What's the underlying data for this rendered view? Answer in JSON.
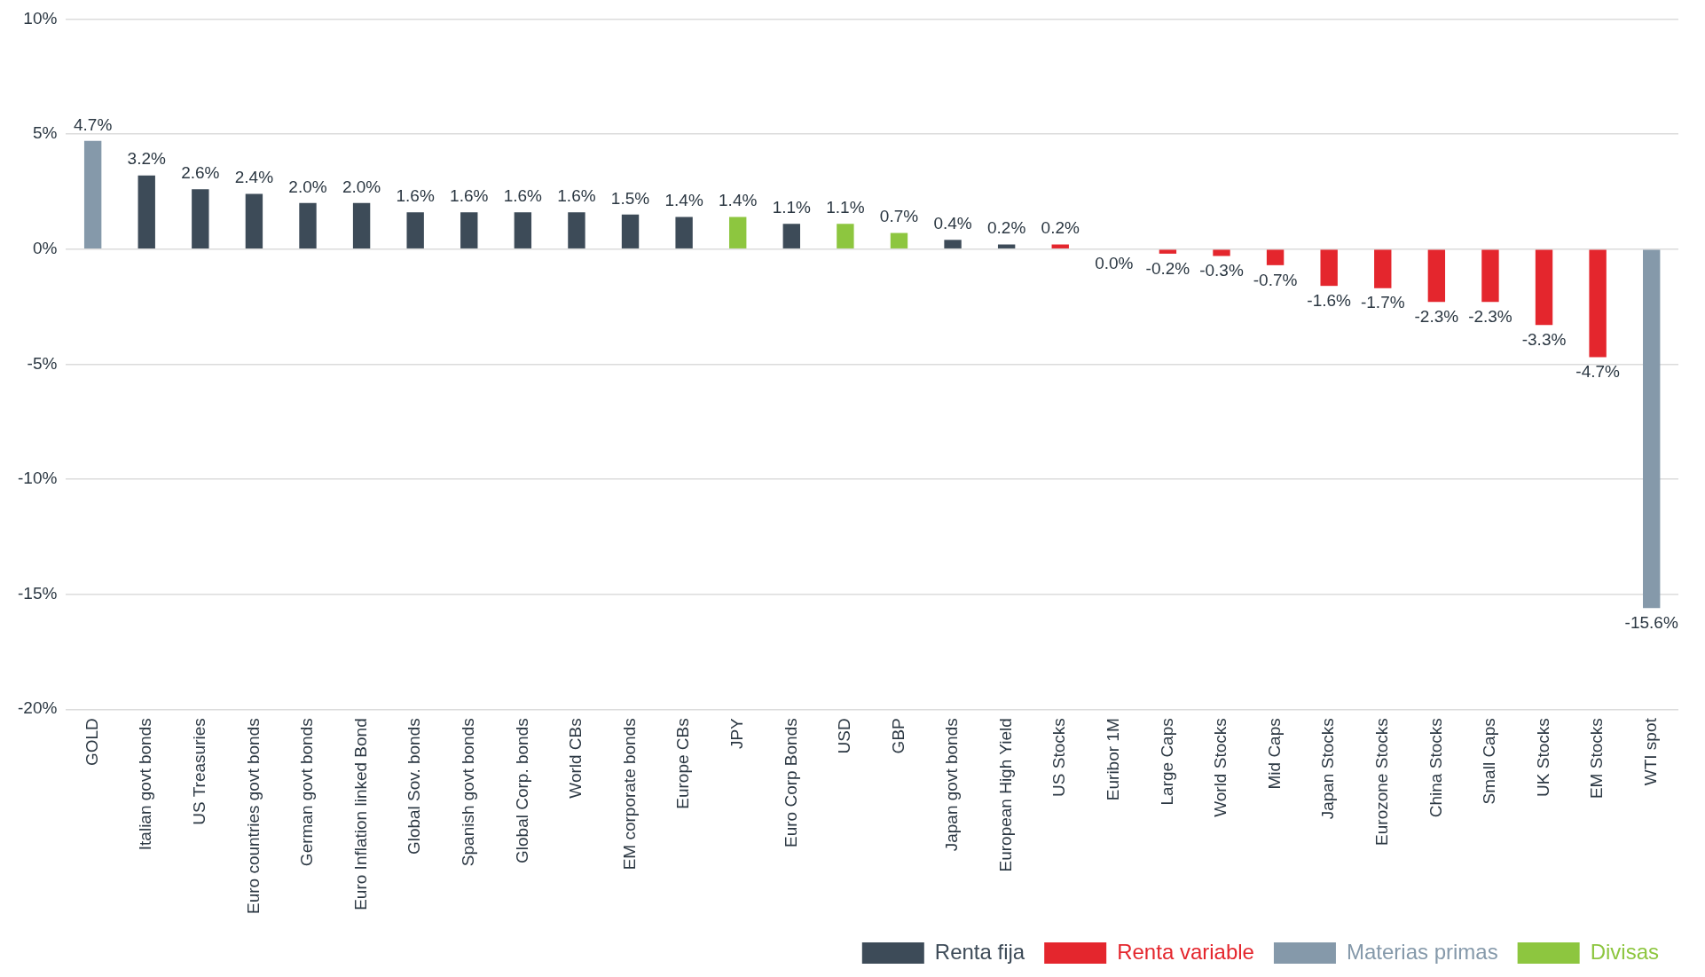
{
  "chart_data": {
    "type": "bar",
    "categories": [
      "GOLD",
      "Italian govt bonds",
      "US Treasuries",
      "Euro countries govt bonds",
      "German govt bonds",
      "Euro Inflation linked Bond",
      "Global Sov. bonds",
      "Spanish govt bonds",
      "Global Corp. bonds",
      "World CBs",
      "EM corporate bonds",
      "Europe CBs",
      "JPY",
      "Euro Corp Bonds",
      "USD",
      "GBP",
      "Japan govt bonds",
      "European High Yield",
      "US Stocks",
      "Euribor 1M",
      "Large Caps",
      "World Stocks",
      "Mid Caps",
      "Japan Stocks",
      "Eurozone Stocks",
      "China Stocks",
      "Small Caps",
      "UK Stocks",
      "EM Stocks",
      "WTI spot"
    ],
    "series": [
      {
        "name": "Renta fija",
        "color": "#3d4b58",
        "values": [
          null,
          3.2,
          2.6,
          2.4,
          2.0,
          2.0,
          1.6,
          1.6,
          1.6,
          1.6,
          1.5,
          1.4,
          null,
          1.1,
          null,
          null,
          0.4,
          0.2,
          null,
          0.0,
          null,
          null,
          null,
          null,
          null,
          null,
          null,
          null,
          null,
          null
        ],
        "value_labels": [
          null,
          "3.2%",
          "2.6%",
          "2.4%",
          "2.0%",
          "2.0%",
          "1.6%",
          "1.6%",
          "1.6%",
          "1.6%",
          "1.5%",
          "1.4%",
          null,
          "1.1%",
          null,
          null,
          "0.4%",
          "0.2%",
          null,
          "0.0%",
          null,
          null,
          null,
          null,
          null,
          null,
          null,
          null,
          null,
          null
        ]
      },
      {
        "name": "Renta variable",
        "color": "#e4262d",
        "values": [
          null,
          null,
          null,
          null,
          null,
          null,
          null,
          null,
          null,
          null,
          null,
          null,
          null,
          null,
          null,
          null,
          null,
          null,
          0.2,
          null,
          -0.2,
          -0.3,
          -0.7,
          -1.6,
          -1.7,
          -2.3,
          -2.3,
          -3.3,
          -4.7,
          null
        ],
        "value_labels": [
          null,
          null,
          null,
          null,
          null,
          null,
          null,
          null,
          null,
          null,
          null,
          null,
          null,
          null,
          null,
          null,
          null,
          null,
          "0.2%",
          null,
          "-0.2%",
          "-0.3%",
          "-0.7%",
          "-1.6%",
          "-1.7%",
          "-2.3%",
          "-2.3%",
          "-3.3%",
          "-4.7%",
          null
        ]
      },
      {
        "name": "Materias primas",
        "color": "#8599aa",
        "values": [
          4.7,
          null,
          null,
          null,
          null,
          null,
          null,
          null,
          null,
          null,
          null,
          null,
          null,
          null,
          null,
          null,
          null,
          null,
          null,
          null,
          null,
          null,
          null,
          null,
          null,
          null,
          null,
          null,
          null,
          -15.6
        ],
        "value_labels": [
          "4.7%",
          null,
          null,
          null,
          null,
          null,
          null,
          null,
          null,
          null,
          null,
          null,
          null,
          null,
          null,
          null,
          null,
          null,
          null,
          null,
          null,
          null,
          null,
          null,
          null,
          null,
          null,
          null,
          null,
          "-15.6%"
        ]
      },
      {
        "name": "Divisas",
        "color": "#8dc63f",
        "values": [
          null,
          null,
          null,
          null,
          null,
          null,
          null,
          null,
          null,
          null,
          null,
          null,
          1.4,
          null,
          1.1,
          0.7,
          null,
          null,
          null,
          null,
          null,
          null,
          null,
          null,
          null,
          null,
          null,
          null,
          null,
          null
        ],
        "value_labels": [
          null,
          null,
          null,
          null,
          null,
          null,
          null,
          null,
          null,
          null,
          null,
          null,
          "1.4%",
          null,
          "1.1%",
          "0.7%",
          null,
          null,
          null,
          null,
          null,
          null,
          null,
          null,
          null,
          null,
          null,
          null,
          null,
          null
        ]
      }
    ],
    "ylim": [
      -20,
      10
    ],
    "yticks": [
      {
        "value": -20,
        "label": "-20%"
      },
      {
        "value": -15,
        "label": "-15%"
      },
      {
        "value": -10,
        "label": "-10%"
      },
      {
        "value": -5,
        "label": "-5%"
      },
      {
        "value": 0,
        "label": "0%"
      },
      {
        "value": 5,
        "label": "5%"
      },
      {
        "value": 10,
        "label": "10%"
      }
    ],
    "grid": "y",
    "legend": "bottom right"
  }
}
